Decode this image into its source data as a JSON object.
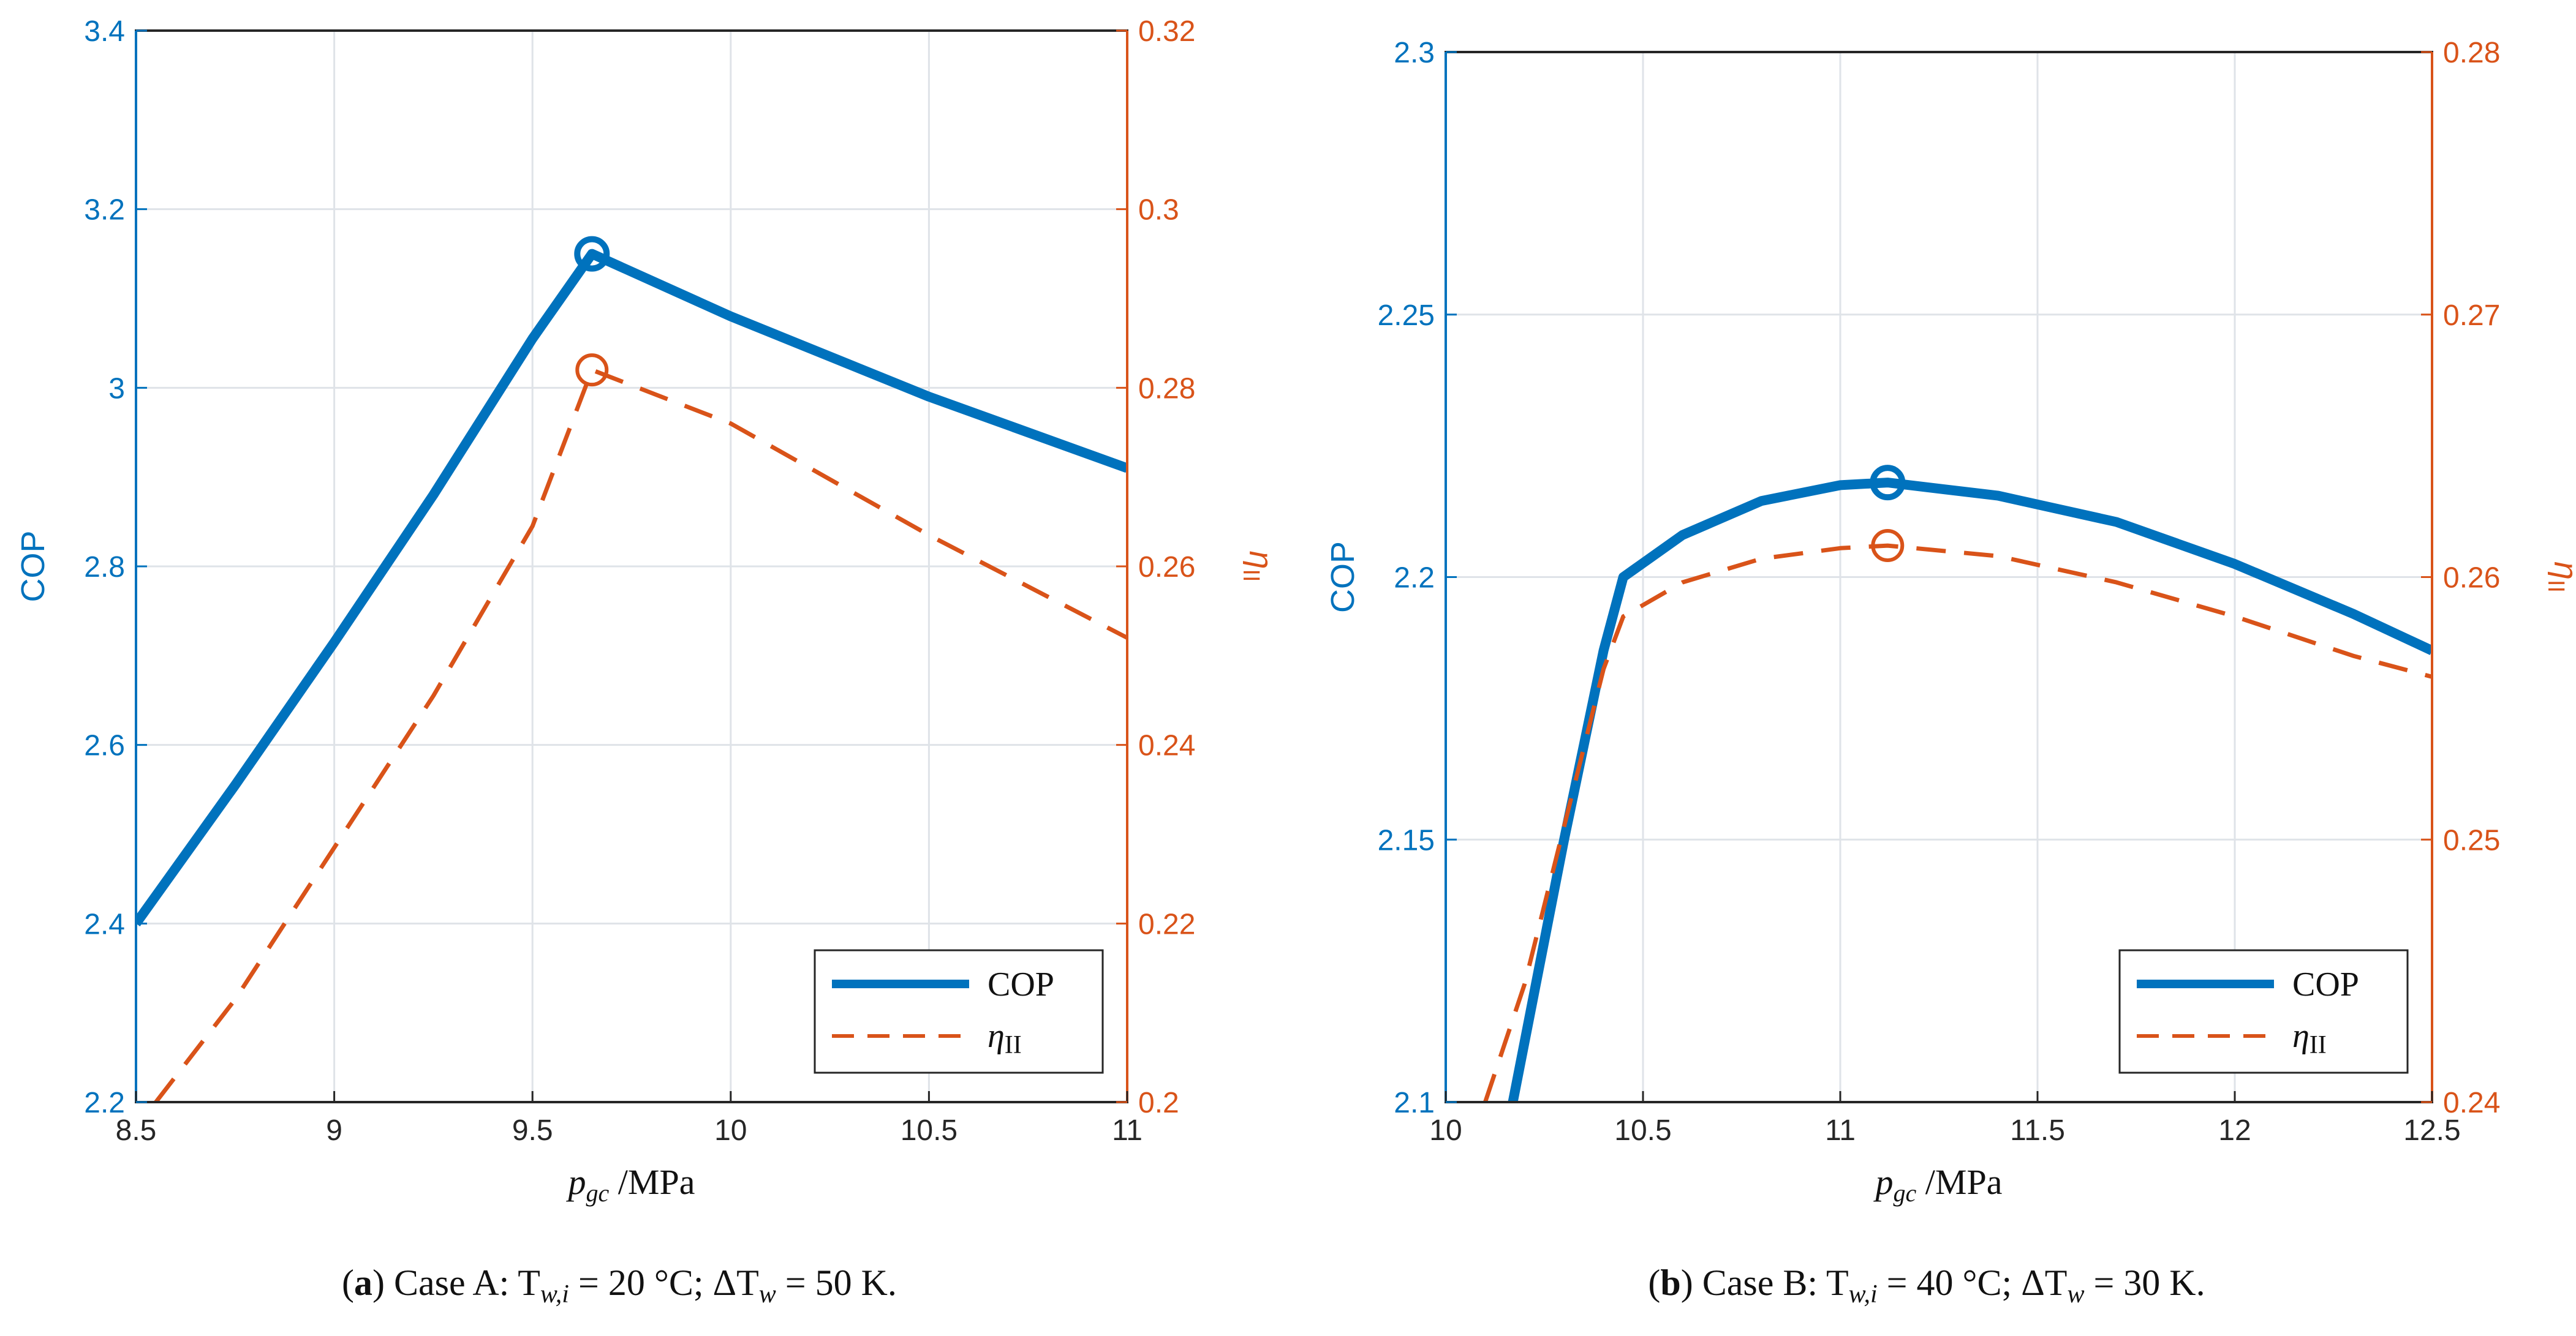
{
  "colors": {
    "cop": "#0072bd",
    "eta": "#d95319",
    "axis": "#262626",
    "grid": "#dfe3e8"
  },
  "chart_data": [
    {
      "type": "line",
      "panel": "a",
      "caption": {
        "label": "a",
        "text": "Case A: T",
        "sub": "w,i",
        "eq": " = 20 °C; ΔT",
        "sub2": "w",
        "eq2": " = 50 K."
      },
      "xlabel": {
        "var": "p",
        "sub": "gc",
        "unit": " /MPa"
      },
      "ylabel_left": "COP",
      "ylabel_right": {
        "var": "η",
        "sub": "II"
      },
      "xlim": [
        8.5,
        11
      ],
      "ylim_left": [
        2.2,
        3.4
      ],
      "ylim_right": [
        0.2,
        0.32
      ],
      "xticks": [
        "8.5",
        "9",
        "9.5",
        "10",
        "10.5",
        "11"
      ],
      "xtick_values": [
        8.5,
        9,
        9.5,
        10,
        10.5,
        11
      ],
      "yticks_left": [
        "2.2",
        "2.4",
        "2.6",
        "2.8",
        "3",
        "3.2",
        "3.4"
      ],
      "ytick_left_values": [
        2.2,
        2.4,
        2.6,
        2.8,
        3.0,
        3.2,
        3.4
      ],
      "yticks_right": [
        "0.2",
        "0.22",
        "0.24",
        "0.26",
        "0.28",
        "0.3",
        "0.32"
      ],
      "ytick_right_values": [
        0.2,
        0.22,
        0.24,
        0.26,
        0.28,
        0.3,
        0.32
      ],
      "grid": true,
      "legend": {
        "position": "bottom-right",
        "entries": [
          "COP",
          "η",
          "II"
        ]
      },
      "series": [
        {
          "name": "COP",
          "axis": "left",
          "style": "solid",
          "x": [
            8.5,
            8.75,
            9.0,
            9.25,
            9.5,
            9.65,
            10.0,
            10.5,
            11.0
          ],
          "y": [
            2.4,
            2.555,
            2.715,
            2.88,
            3.055,
            3.15,
            3.08,
            2.99,
            2.91
          ]
        },
        {
          "name": "ηII",
          "axis": "right",
          "style": "dashed",
          "x": [
            8.55,
            8.75,
            9.0,
            9.25,
            9.5,
            9.65,
            10.0,
            10.5,
            11.0
          ],
          "y": [
            0.2,
            0.2115,
            0.2285,
            0.2455,
            0.2645,
            0.282,
            0.276,
            0.2635,
            0.252
          ]
        }
      ],
      "optima": [
        {
          "series": "COP",
          "x": 9.65,
          "y": 3.15,
          "axis": "left"
        },
        {
          "series": "ηII",
          "x": 9.65,
          "y": 0.282,
          "axis": "right"
        }
      ]
    },
    {
      "type": "line",
      "panel": "b",
      "caption": {
        "label": "b",
        "text": "Case B: T",
        "sub": "w,i",
        "eq": " = 40 °C; ΔT",
        "sub2": "w",
        "eq2": " = 30 K."
      },
      "xlabel": {
        "var": "p",
        "sub": "gc",
        "unit": " /MPa"
      },
      "ylabel_left": "COP",
      "ylabel_right": {
        "var": "η",
        "sub": "II"
      },
      "xlim": [
        10,
        12.5
      ],
      "ylim_left": [
        2.1,
        2.3
      ],
      "ylim_right": [
        0.24,
        0.28
      ],
      "xticks": [
        "10",
        "10.5",
        "11",
        "11.5",
        "12",
        "12.5"
      ],
      "xtick_values": [
        10,
        10.5,
        11,
        11.5,
        12,
        12.5
      ],
      "yticks_left": [
        "2.1",
        "2.15",
        "2.2",
        "2.25",
        "2.3"
      ],
      "ytick_left_values": [
        2.1,
        2.15,
        2.2,
        2.25,
        2.3
      ],
      "yticks_right": [
        "0.24",
        "0.25",
        "0.26",
        "0.27",
        "0.28"
      ],
      "ytick_right_values": [
        0.24,
        0.25,
        0.26,
        0.27,
        0.28
      ],
      "grid": true,
      "legend": {
        "position": "bottom-right",
        "entries": [
          "COP",
          "η",
          "II"
        ]
      },
      "series": [
        {
          "name": "COP",
          "axis": "left",
          "style": "solid",
          "x": [
            10.17,
            10.3,
            10.4,
            10.45,
            10.6,
            10.8,
            11.0,
            11.12,
            11.4,
            11.7,
            12.0,
            12.3,
            12.5
          ],
          "y": [
            2.1,
            2.15,
            2.186,
            2.2,
            2.208,
            2.2145,
            2.2175,
            2.218,
            2.2155,
            2.2105,
            2.2025,
            2.193,
            2.186
          ]
        },
        {
          "name": "ηII",
          "axis": "right",
          "style": "dashed",
          "x": [
            10.1,
            10.2,
            10.3,
            10.4,
            10.45,
            10.6,
            10.8,
            11.0,
            11.12,
            11.4,
            11.7,
            12.0,
            12.3,
            12.5
          ],
          "y": [
            0.24,
            0.2445,
            0.2505,
            0.2565,
            0.2585,
            0.2598,
            0.2607,
            0.2611,
            0.2612,
            0.2608,
            0.2598,
            0.2585,
            0.257,
            0.2562
          ]
        }
      ],
      "optima": [
        {
          "series": "COP",
          "x": 11.12,
          "y": 2.218,
          "axis": "left"
        },
        {
          "series": "ηII",
          "x": 11.12,
          "y": 0.2612,
          "axis": "right"
        }
      ]
    }
  ]
}
